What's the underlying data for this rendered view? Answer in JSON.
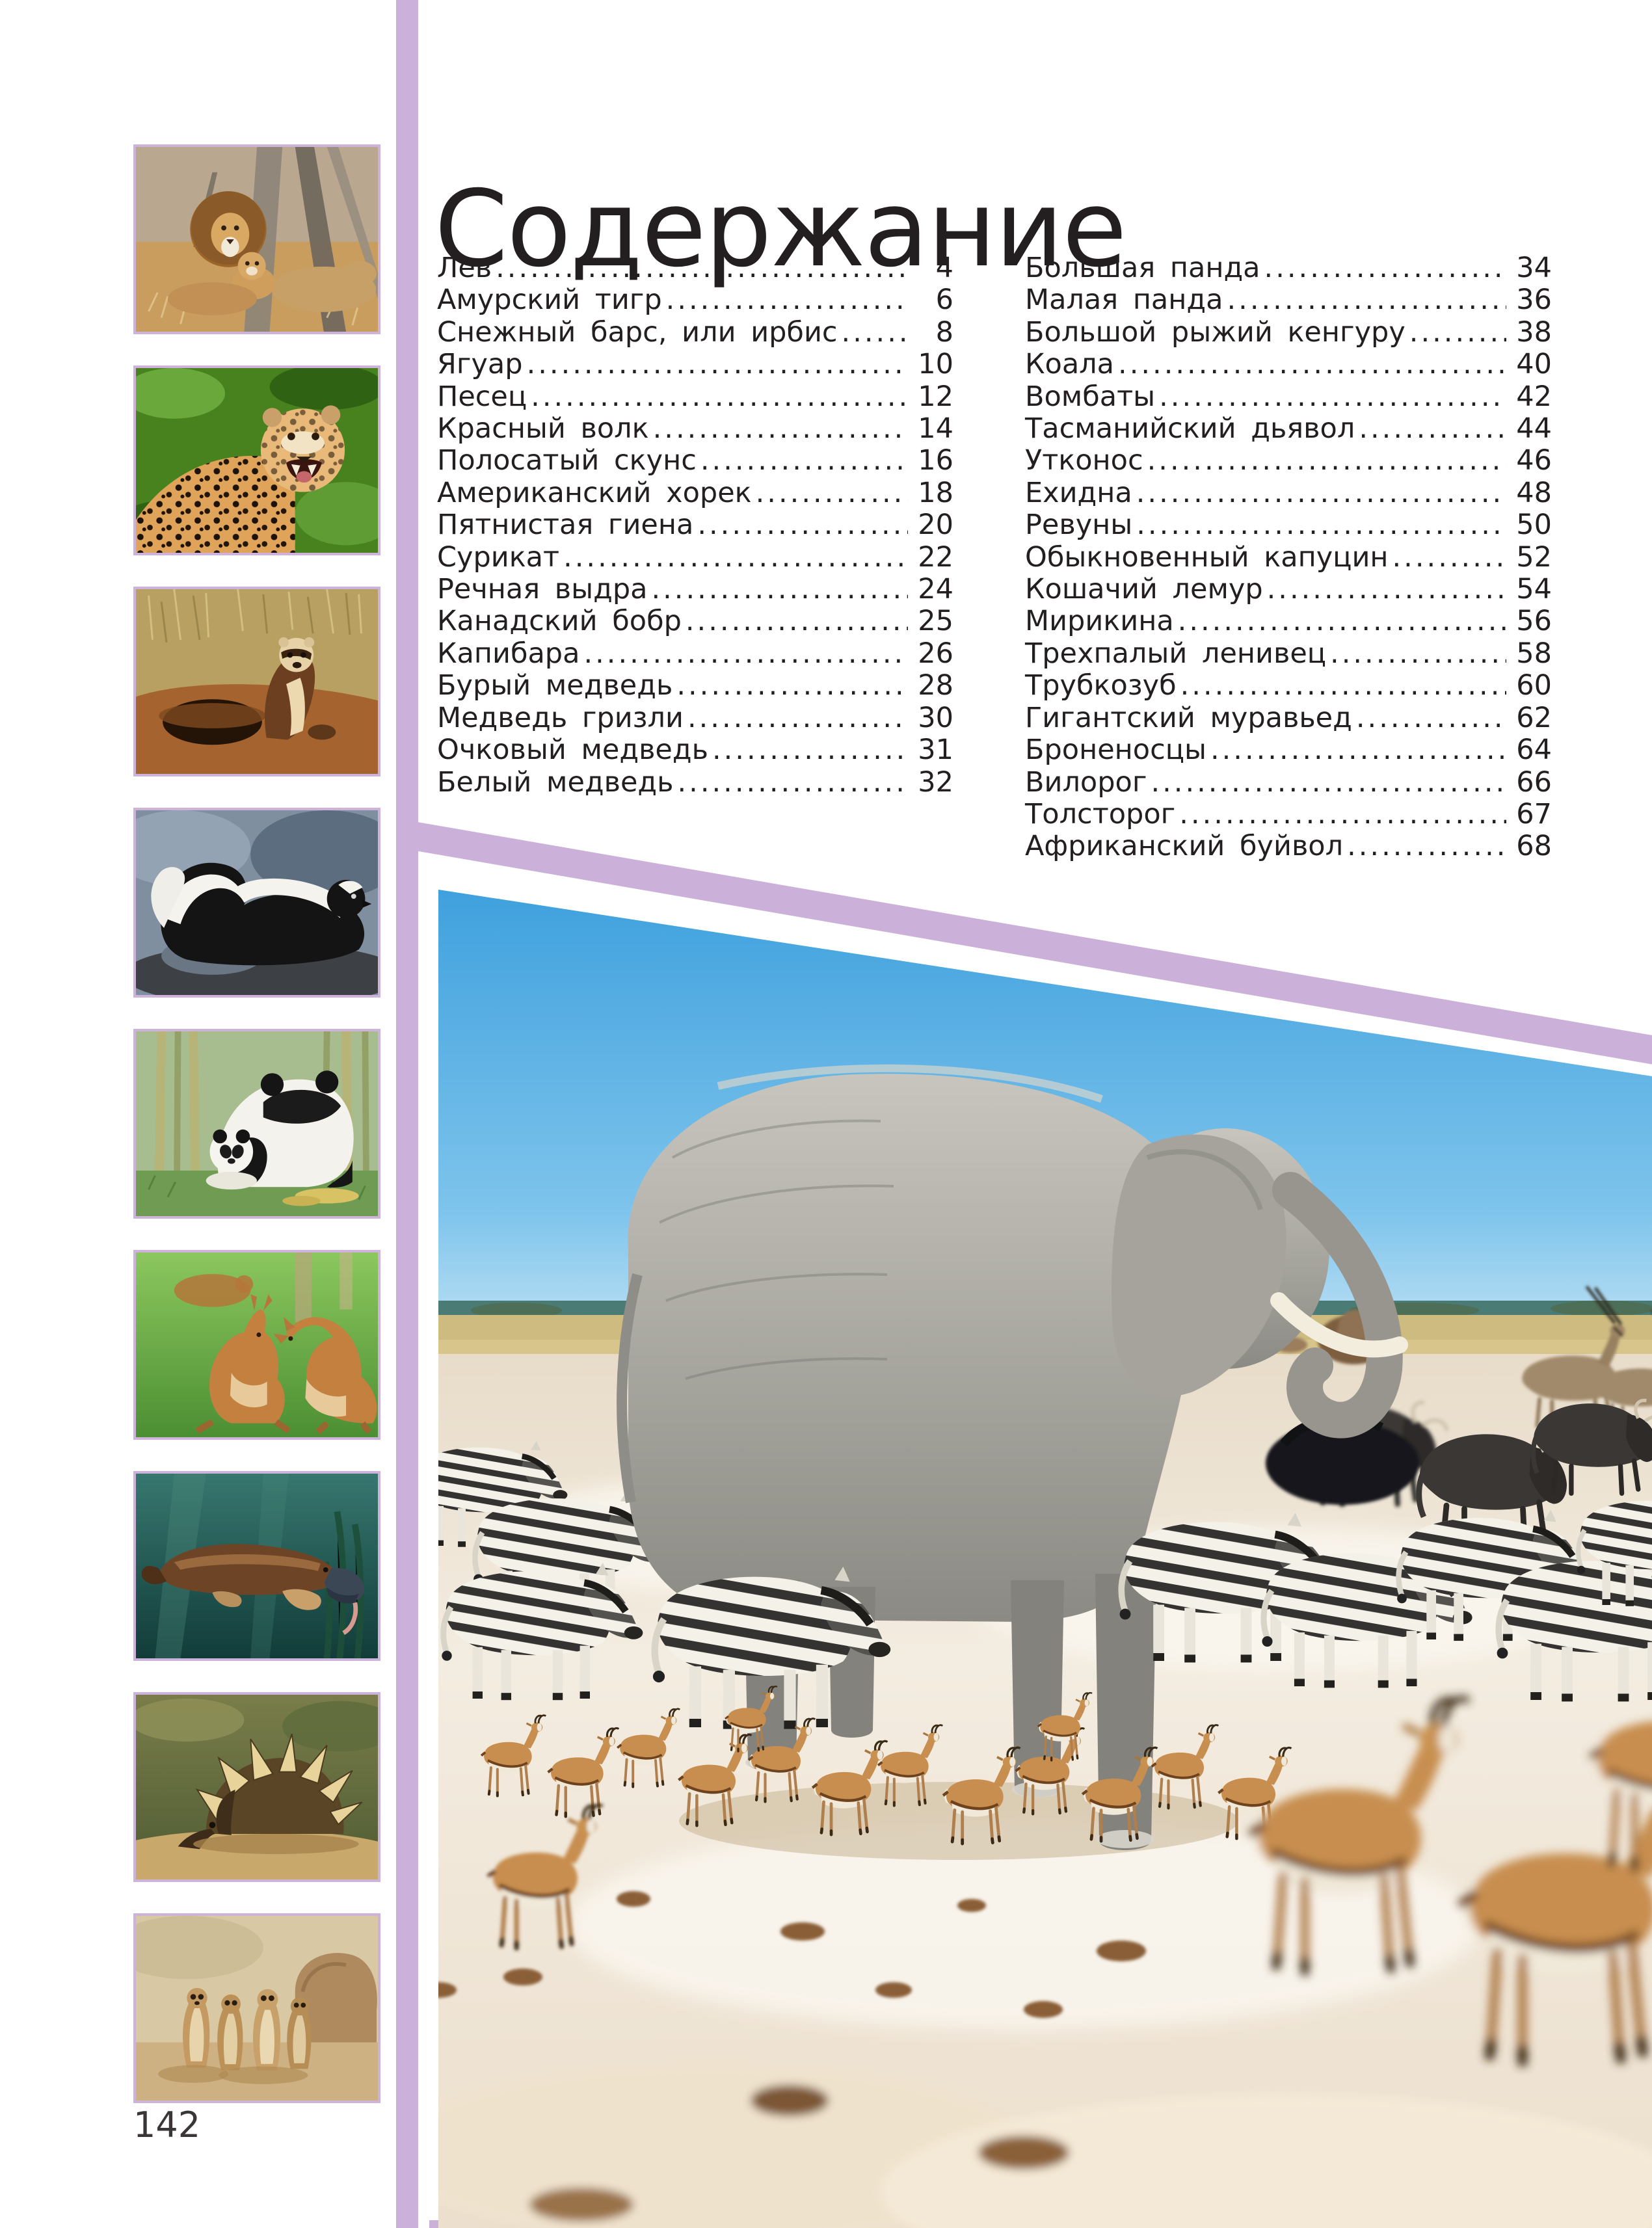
{
  "page": {
    "title": "Содержание",
    "page_number": "142"
  },
  "toc": {
    "left_column": [
      {
        "label": "Лев",
        "page": "4"
      },
      {
        "label": "Амурский тигр",
        "page": "6"
      },
      {
        "label": "Снежный барс, или ирбис",
        "page": "8"
      },
      {
        "label": "Ягуар",
        "page": "10"
      },
      {
        "label": "Песец",
        "page": "12"
      },
      {
        "label": "Красный волк",
        "page": "14"
      },
      {
        "label": "Полосатый скунс",
        "page": "16"
      },
      {
        "label": "Американский хорек",
        "page": "18"
      },
      {
        "label": "Пятнистая гиена",
        "page": "20"
      },
      {
        "label": "Сурикат",
        "page": "22"
      },
      {
        "label": "Речная выдра",
        "page": "24"
      },
      {
        "label": "Канадский бобр",
        "page": "25"
      },
      {
        "label": "Капибара",
        "page": "26"
      },
      {
        "label": "Бурый медведь",
        "page": "28"
      },
      {
        "label": "Медведь гризли",
        "page": "30"
      },
      {
        "label": "Очковый медведь",
        "page": "31"
      },
      {
        "label": "Белый медведь",
        "page": "32"
      }
    ],
    "right_column": [
      {
        "label": "Большая панда",
        "page": "34"
      },
      {
        "label": "Малая панда",
        "page": "36"
      },
      {
        "label": "Большой рыжий кенгуру",
        "page": "38"
      },
      {
        "label": "Коала",
        "page": "40"
      },
      {
        "label": "Вомбаты",
        "page": "42"
      },
      {
        "label": "Тасманийский дьявол",
        "page": "44"
      },
      {
        "label": "Утконос",
        "page": "46"
      },
      {
        "label": "Ехидна",
        "page": "48"
      },
      {
        "label": "Ревуны",
        "page": "50"
      },
      {
        "label": "Обыкновенный капуцин",
        "page": "52"
      },
      {
        "label": "Кошачий лемур",
        "page": "54"
      },
      {
        "label": "Мирикина",
        "page": "56"
      },
      {
        "label": "Трехпалый ленивец",
        "page": "58"
      },
      {
        "label": "Трубкозуб",
        "page": "60"
      },
      {
        "label": "Гигантский муравьед",
        "page": "62"
      },
      {
        "label": "Броненосцы",
        "page": "64"
      },
      {
        "label": "Вилорог",
        "page": "66"
      },
      {
        "label": "Толсторог",
        "page": "67"
      },
      {
        "label": "Африканский буйвол",
        "page": "68"
      }
    ]
  },
  "sidebar": {
    "photos": [
      {
        "alt": "Лев со львенком и львицей под деревом"
      },
      {
        "alt": "Рычащий ягуар в зеленой листве"
      },
      {
        "alt": "Американский хорек у норы"
      },
      {
        "alt": "Полосатый скунс на камнях"
      },
      {
        "alt": "Большая панда с детенышем"
      },
      {
        "alt": "Большие рыжие кенгуру на траве"
      },
      {
        "alt": "Утконос под водой"
      },
      {
        "alt": "Ехидна"
      },
      {
        "alt": "Семейство сурикатов у камня"
      }
    ]
  },
  "main_photo": {
    "alt": "Африканский слон, зебры, антилопы-спрингбоки, гну и орикс у водопоя в саванне"
  },
  "colors": {
    "accent_lavender": "#cbb1da",
    "photo_border": "#cdb3da",
    "text": "#231f20",
    "sky_blue": "#4fa9e0"
  }
}
